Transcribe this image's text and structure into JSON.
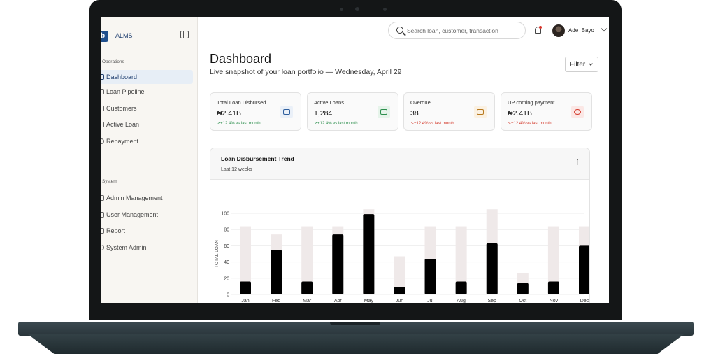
{
  "sidebar": {
    "brand": "ALMS",
    "logo_glyph": "b",
    "sections": [
      {
        "label": "Operations",
        "items": [
          "Dashboard",
          "Loan Pipeline",
          "Customers",
          "Active Loan",
          "Repayment"
        ]
      },
      {
        "label": "System",
        "items": [
          "Admin Management",
          "User Management",
          "Report",
          "System Admin"
        ]
      }
    ],
    "active_item": "Dashboard"
  },
  "topbar": {
    "search_placeholder": "Search loan, customer, transaction",
    "user_name": "Ade  Bayo",
    "notification_dot_color": "#d9342b"
  },
  "header": {
    "title": "Dashboard",
    "subtitle": "Live snapshot of your loan portfolio — Wednesday, April 29",
    "filter_label": "Filter"
  },
  "stats": [
    {
      "label": "Total Loan Disbursed",
      "value": "₦2.41B",
      "trend": "+12.4% vs last month",
      "trend_dir": "up",
      "icon": "cash-icon",
      "icon_color": "#2f5f9e",
      "icon_bg": "#eaf0f8"
    },
    {
      "label": "Active Loans",
      "value": "1,284",
      "trend": "+12.4% vs last month",
      "trend_dir": "up",
      "icon": "wallet-icon",
      "icon_color": "#2d8f4e",
      "icon_bg": "#e6f4ea"
    },
    {
      "label": "Overdue",
      "value": "38",
      "trend": "+12.4% vs last month",
      "trend_dir": "down",
      "icon": "alert-icon",
      "icon_color": "#b7791f",
      "icon_bg": "#fbf1e2"
    },
    {
      "label": "UP coming payment",
      "value": "₦2.41B",
      "trend": "+12.4% vs last month",
      "trend_dir": "down",
      "icon": "trend-down-icon",
      "icon_color": "#d3392b",
      "icon_bg": "#fbe7e5"
    }
  ],
  "chart_card": {
    "title": "Loan Disbursement Trend",
    "subtitle": "Last 12 weeks"
  },
  "chart_data": {
    "type": "bar",
    "ylabel": "TOTAL LOAN",
    "xlabel": "",
    "ylim": [
      0,
      100
    ],
    "yticks": [
      0,
      20,
      40,
      60,
      80,
      100
    ],
    "categories": [
      "Jan",
      "Fed",
      "Mar",
      "Apr",
      "May",
      "Jun",
      "Jul",
      "Aug",
      "Sep",
      "Oct",
      "Nov",
      "Dec"
    ],
    "series": [
      {
        "values": [
          16,
          55,
          16,
          74,
          99,
          9,
          44,
          16,
          63,
          14,
          16,
          60
        ],
        "color": "#000000"
      },
      {
        "values": [
          84,
          74,
          84,
          84,
          105,
          47,
          84,
          84,
          105,
          26,
          84,
          84
        ],
        "color": "#efe9e9"
      }
    ],
    "grid": true
  }
}
